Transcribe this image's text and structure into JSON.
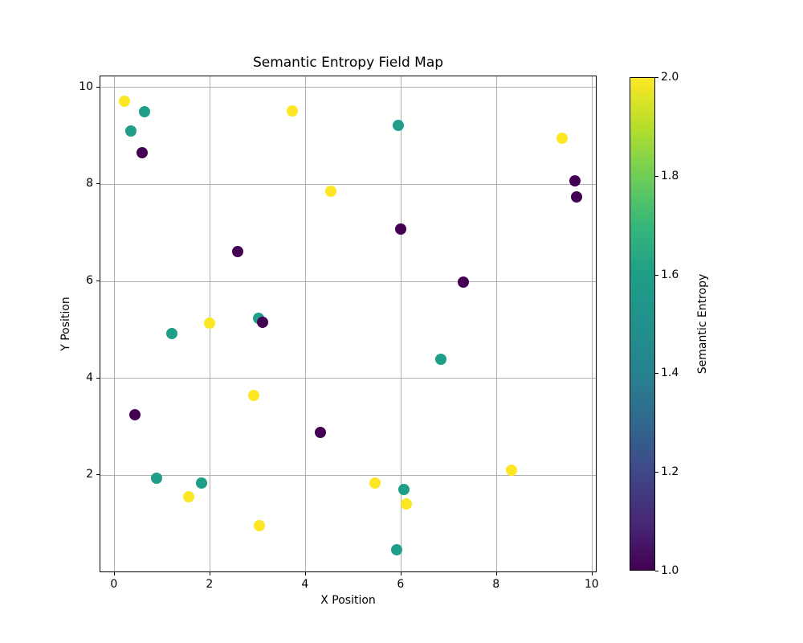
{
  "figure": {
    "background": "#ffffff"
  },
  "chart_data": {
    "type": "scatter",
    "title": "Semantic Entropy Field Map",
    "xlabel": "X Position",
    "ylabel": "Y Position",
    "xlim": [
      -0.3,
      10.105
    ],
    "ylim": [
      -0.02,
      10.23
    ],
    "xticks": [
      0,
      2,
      4,
      6,
      8,
      10
    ],
    "yticks": [
      2,
      4,
      6,
      8,
      10
    ],
    "grid": true,
    "grid_color": "#b0b0b0",
    "marker_size_px": 14,
    "points": [
      {
        "x": 0.2,
        "y": 9.72,
        "v": 2
      },
      {
        "x": 0.34,
        "y": 9.11,
        "v": 1.6
      },
      {
        "x": 0.63,
        "y": 9.5,
        "v": 1.6
      },
      {
        "x": 0.57,
        "y": 8.66,
        "v": 1
      },
      {
        "x": 3.72,
        "y": 9.51,
        "v": 2
      },
      {
        "x": 5.94,
        "y": 9.22,
        "v": 1.6
      },
      {
        "x": 4.53,
        "y": 7.85,
        "v": 2
      },
      {
        "x": 5.98,
        "y": 7.08,
        "v": 1
      },
      {
        "x": 9.37,
        "y": 8.95,
        "v": 2
      },
      {
        "x": 9.63,
        "y": 8.08,
        "v": 1
      },
      {
        "x": 9.66,
        "y": 7.75,
        "v": 1
      },
      {
        "x": 2.57,
        "y": 6.62,
        "v": 1
      },
      {
        "x": 7.3,
        "y": 5.98,
        "v": 1
      },
      {
        "x": 1.99,
        "y": 5.13,
        "v": 2
      },
      {
        "x": 1.19,
        "y": 4.93,
        "v": 1.6
      },
      {
        "x": 3.01,
        "y": 5.24,
        "v": 1.6
      },
      {
        "x": 3.1,
        "y": 5.16,
        "v": 1
      },
      {
        "x": 6.83,
        "y": 4.39,
        "v": 1.6
      },
      {
        "x": 2.91,
        "y": 3.64,
        "v": 2
      },
      {
        "x": 0.43,
        "y": 3.24,
        "v": 1
      },
      {
        "x": 4.3,
        "y": 2.89,
        "v": 1
      },
      {
        "x": 8.3,
        "y": 2.11,
        "v": 2
      },
      {
        "x": 0.88,
        "y": 1.93,
        "v": 1.6
      },
      {
        "x": 1.81,
        "y": 1.83,
        "v": 1.6
      },
      {
        "x": 5.45,
        "y": 1.84,
        "v": 2
      },
      {
        "x": 6.06,
        "y": 1.71,
        "v": 1.6
      },
      {
        "x": 1.55,
        "y": 1.55,
        "v": 2
      },
      {
        "x": 6.1,
        "y": 1.4,
        "v": 2
      },
      {
        "x": 3.03,
        "y": 0.96,
        "v": 2
      },
      {
        "x": 5.9,
        "y": 0.46,
        "v": 1.6
      }
    ],
    "value_color_map": {
      "1": "#440154",
      "1.6": "#1f9e89",
      "2": "#fde725"
    },
    "colorbar": {
      "label": "Semantic Entropy",
      "vmin": 1.0,
      "vmax": 2.0,
      "tick_labels": [
        "2.0",
        "1.8",
        "1.6",
        "1.4",
        "1.2",
        "1.0"
      ],
      "tick_values": [
        2.0,
        1.8,
        1.6,
        1.4,
        1.2,
        1.0
      ],
      "colormap": "viridis",
      "gradient_stops_bottom_to_top": [
        "#440154",
        "#482878",
        "#3e4989",
        "#31688e",
        "#26828e",
        "#21918c",
        "#1f9e89",
        "#35b779",
        "#6ece58",
        "#b5de2b",
        "#fde725"
      ]
    }
  }
}
